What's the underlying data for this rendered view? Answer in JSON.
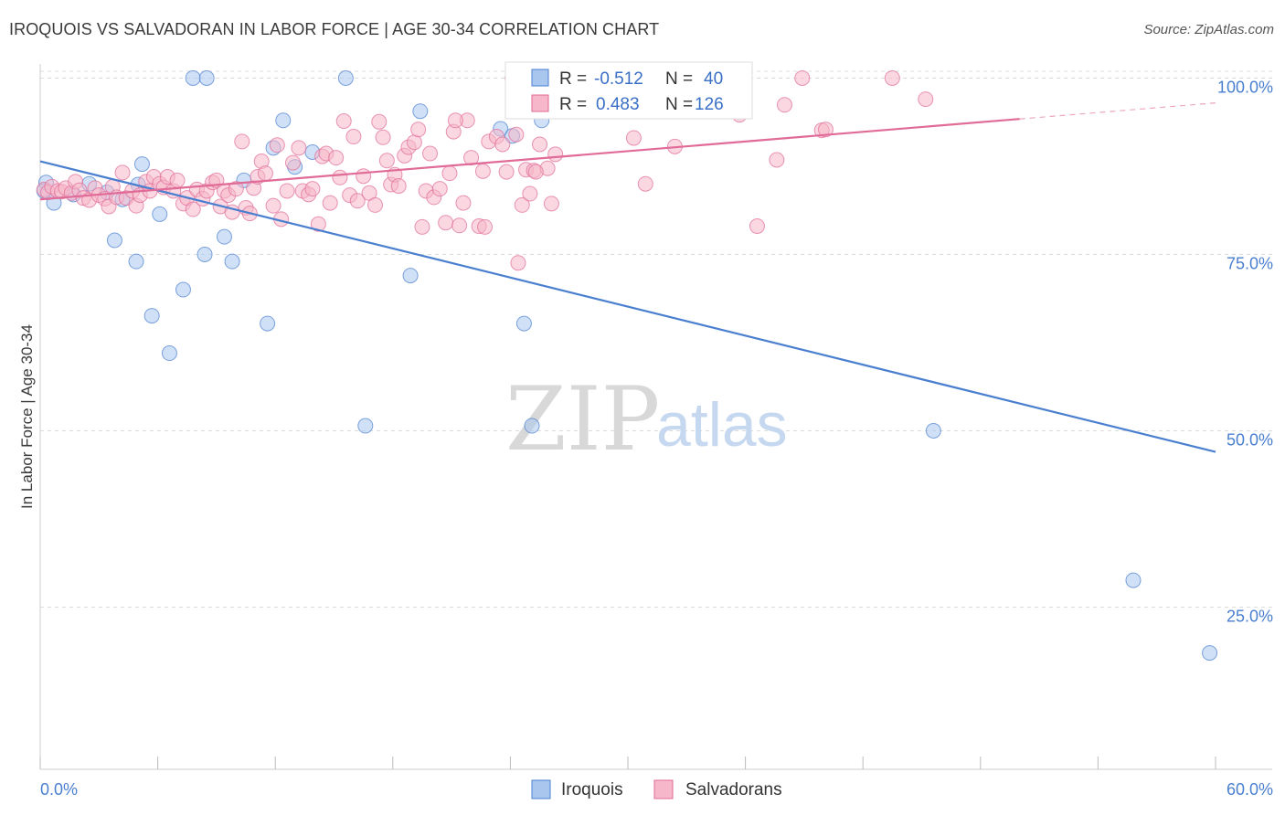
{
  "header": {
    "title": "IROQUOIS VS SALVADORAN IN LABOR FORCE | AGE 30-34 CORRELATION CHART",
    "source": "Source: ZipAtlas.com"
  },
  "watermark": {
    "zip": "ZIP",
    "atlas": "atlas"
  },
  "legend": {
    "rows": [
      {
        "r_label": "R =",
        "r_value": "-0.512",
        "n_label": "N =",
        "n_value": "40",
        "color": "#a9c6ef"
      },
      {
        "r_label": "R =",
        "r_value": "0.483",
        "n_label": "N =",
        "n_value": "126",
        "color": "#f5b7c9"
      }
    ]
  },
  "bottom_legend": {
    "items": [
      {
        "label": "Iroquois",
        "color": "#a9c6ef"
      },
      {
        "label": "Salvadorans",
        "color": "#f5b7c9"
      }
    ]
  },
  "chart_data": {
    "type": "scatter",
    "title": "IROQUOIS VS SALVADORAN IN LABOR FORCE | AGE 30-34 CORRELATION CHART",
    "ylabel": "In Labor Force | Age 30-34",
    "xlabel": "",
    "xlim": [
      0,
      60
    ],
    "ylim": [
      2,
      102
    ],
    "x_tick_labels": [
      "0.0%",
      "60.0%"
    ],
    "y_ticks": [
      25,
      50,
      75,
      100
    ],
    "y_tick_labels": [
      "25.0%",
      "50.0%",
      "75.0%",
      "100.0%"
    ],
    "grid": true,
    "legend_position": "top-center",
    "series": [
      {
        "name": "Iroquois",
        "color": "#4a7fd0",
        "fill": "#a9c6ef",
        "trend": {
          "x": [
            0,
            60
          ],
          "y": [
            88.2,
            47.0
          ],
          "dashed_from": null
        },
        "points": [
          [
            0.3,
            85.2
          ],
          [
            0.7,
            82.3
          ],
          [
            1.7,
            83.5
          ],
          [
            2.5,
            85.0
          ],
          [
            3.4,
            83.8
          ],
          [
            3.8,
            77.0
          ],
          [
            4.2,
            82.8
          ],
          [
            5.0,
            84.9
          ],
          [
            4.9,
            74.0
          ],
          [
            5.2,
            87.8
          ],
          [
            5.7,
            66.3
          ],
          [
            6.1,
            80.7
          ],
          [
            6.6,
            61.0
          ],
          [
            7.3,
            70.0
          ],
          [
            7.8,
            100.0
          ],
          [
            8.5,
            100.0
          ],
          [
            8.4,
            75.0
          ],
          [
            9.4,
            77.5
          ],
          [
            9.8,
            74.0
          ],
          [
            10.4,
            85.5
          ],
          [
            11.6,
            65.2
          ],
          [
            11.9,
            90.1
          ],
          [
            12.4,
            94.0
          ],
          [
            13.0,
            87.4
          ],
          [
            13.9,
            89.5
          ],
          [
            15.6,
            100.0
          ],
          [
            16.6,
            50.7
          ],
          [
            18.9,
            72.0
          ],
          [
            19.4,
            95.3
          ],
          [
            23.5,
            92.8
          ],
          [
            24.1,
            91.8
          ],
          [
            24.7,
            65.2
          ],
          [
            25.1,
            50.7
          ],
          [
            25.6,
            94.0
          ],
          [
            26.0,
            100.0
          ],
          [
            27.2,
            100.0
          ],
          [
            45.6,
            50.0
          ],
          [
            55.8,
            28.8
          ],
          [
            59.7,
            18.5
          ],
          [
            0.2,
            84.0
          ]
        ]
      },
      {
        "name": "Salvadorans",
        "color": "#e06b97",
        "fill": "#f5b7c9",
        "trend": {
          "x": [
            0,
            50
          ],
          "y": [
            82.8,
            94.2
          ],
          "dashed_from": 50
        },
        "points": [
          [
            0.2,
            84.2
          ],
          [
            0.4,
            83.8
          ],
          [
            0.6,
            84.6
          ],
          [
            0.9,
            84.0
          ],
          [
            1.1,
            83.9
          ],
          [
            1.3,
            84.4
          ],
          [
            1.6,
            83.7
          ],
          [
            1.8,
            85.3
          ],
          [
            2.0,
            84.1
          ],
          [
            2.2,
            83.0
          ],
          [
            2.5,
            82.7
          ],
          [
            2.8,
            84.4
          ],
          [
            3.0,
            83.4
          ],
          [
            3.3,
            82.9
          ],
          [
            3.5,
            81.8
          ],
          [
            3.7,
            84.6
          ],
          [
            3.9,
            83.1
          ],
          [
            4.2,
            86.6
          ],
          [
            4.4,
            83.0
          ],
          [
            4.7,
            84.0
          ],
          [
            4.9,
            81.9
          ],
          [
            5.1,
            83.4
          ],
          [
            5.4,
            85.3
          ],
          [
            5.6,
            84.0
          ],
          [
            5.8,
            86.0
          ],
          [
            6.1,
            85.0
          ],
          [
            6.3,
            84.5
          ],
          [
            6.5,
            86.0
          ],
          [
            6.8,
            84.0
          ],
          [
            7.0,
            85.5
          ],
          [
            7.3,
            82.2
          ],
          [
            7.5,
            83.0
          ],
          [
            7.8,
            81.4
          ],
          [
            8.0,
            84.2
          ],
          [
            8.3,
            82.9
          ],
          [
            8.5,
            84.0
          ],
          [
            8.8,
            85.2
          ],
          [
            9.0,
            85.5
          ],
          [
            9.2,
            81.8
          ],
          [
            9.4,
            84.0
          ],
          [
            9.6,
            83.4
          ],
          [
            9.8,
            81.0
          ],
          [
            10.0,
            84.3
          ],
          [
            10.3,
            91.0
          ],
          [
            10.5,
            81.6
          ],
          [
            10.7,
            80.8
          ],
          [
            10.9,
            84.4
          ],
          [
            11.1,
            86.0
          ],
          [
            11.3,
            88.2
          ],
          [
            11.5,
            86.5
          ],
          [
            11.9,
            81.9
          ],
          [
            12.1,
            90.5
          ],
          [
            12.3,
            80.0
          ],
          [
            12.6,
            84.0
          ],
          [
            12.9,
            88.0
          ],
          [
            13.2,
            90.1
          ],
          [
            13.4,
            84.0
          ],
          [
            13.7,
            83.5
          ],
          [
            13.9,
            84.3
          ],
          [
            14.2,
            79.3
          ],
          [
            14.4,
            88.9
          ],
          [
            14.6,
            89.3
          ],
          [
            14.8,
            82.3
          ],
          [
            15.1,
            88.7
          ],
          [
            15.3,
            85.9
          ],
          [
            15.5,
            93.9
          ],
          [
            15.8,
            83.4
          ],
          [
            16.0,
            91.7
          ],
          [
            16.2,
            82.6
          ],
          [
            16.5,
            86.1
          ],
          [
            16.8,
            83.7
          ],
          [
            17.1,
            82.0
          ],
          [
            17.3,
            93.8
          ],
          [
            17.5,
            91.6
          ],
          [
            17.7,
            88.3
          ],
          [
            17.9,
            84.9
          ],
          [
            18.1,
            86.3
          ],
          [
            18.3,
            84.7
          ],
          [
            18.6,
            89.0
          ],
          [
            18.8,
            90.2
          ],
          [
            19.1,
            90.9
          ],
          [
            19.3,
            92.7
          ],
          [
            19.5,
            78.9
          ],
          [
            19.7,
            84.0
          ],
          [
            19.9,
            89.3
          ],
          [
            20.1,
            83.1
          ],
          [
            20.4,
            84.3
          ],
          [
            20.7,
            79.5
          ],
          [
            20.9,
            86.5
          ],
          [
            21.1,
            92.4
          ],
          [
            21.4,
            79.1
          ],
          [
            21.6,
            82.3
          ],
          [
            21.8,
            94.0
          ],
          [
            22.0,
            88.7
          ],
          [
            22.4,
            79.0
          ],
          [
            22.6,
            86.8
          ],
          [
            22.9,
            91.0
          ],
          [
            23.3,
            91.7
          ],
          [
            23.6,
            90.6
          ],
          [
            23.8,
            86.7
          ],
          [
            24.1,
            100.0
          ],
          [
            24.4,
            73.8
          ],
          [
            24.6,
            82.0
          ],
          [
            24.8,
            87.0
          ],
          [
            25.0,
            83.6
          ],
          [
            25.2,
            86.9
          ],
          [
            25.5,
            90.6
          ],
          [
            25.9,
            87.2
          ],
          [
            26.1,
            82.2
          ],
          [
            26.3,
            89.2
          ],
          [
            30.3,
            91.5
          ],
          [
            30.9,
            85.0
          ],
          [
            32.4,
            90.3
          ],
          [
            35.7,
            94.8
          ],
          [
            36.6,
            79.0
          ],
          [
            37.6,
            88.4
          ],
          [
            38.0,
            96.2
          ],
          [
            38.9,
            100.0
          ],
          [
            39.9,
            92.6
          ],
          [
            40.1,
            92.7
          ],
          [
            43.5,
            100.0
          ],
          [
            45.2,
            97.0
          ],
          [
            25.3,
            86.7
          ],
          [
            24.3,
            92.0
          ],
          [
            21.2,
            94.0
          ],
          [
            22.7,
            78.9
          ]
        ]
      }
    ]
  }
}
